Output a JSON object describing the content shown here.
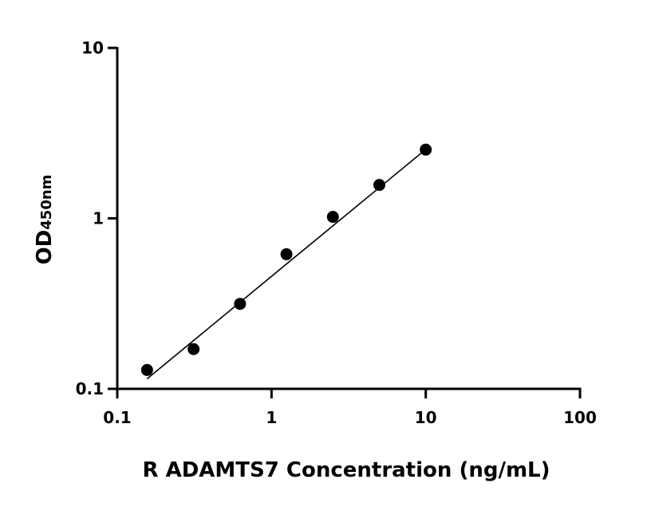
{
  "chart_data": {
    "type": "scatter",
    "title": "",
    "xlabel": "R ADAMTS7 Concentration (ng/mL)",
    "ylabel": "OD",
    "ylabel_subscript": "450nm",
    "xscale": "log",
    "yscale": "log",
    "xlim": [
      0.1,
      100
    ],
    "ylim": [
      0.1,
      10
    ],
    "xticks": [
      0.1,
      1,
      10,
      100
    ],
    "xtick_labels": [
      "0.1",
      "1",
      "10",
      "100"
    ],
    "yticks": [
      0.1,
      1,
      10
    ],
    "ytick_labels": [
      "0.1",
      "1",
      "10"
    ],
    "grid": false,
    "series": [
      {
        "x": [
          0.156,
          0.3125,
          0.625,
          1.25,
          2.5,
          5,
          10
        ],
        "y": [
          0.129,
          0.171,
          0.315,
          0.616,
          1.02,
          1.57,
          2.53
        ],
        "marker": "circle",
        "color": "#000000"
      }
    ],
    "fit_line": {
      "x": [
        0.156,
        10
      ],
      "y": [
        0.1145,
        2.54
      ],
      "color": "#000000"
    }
  }
}
